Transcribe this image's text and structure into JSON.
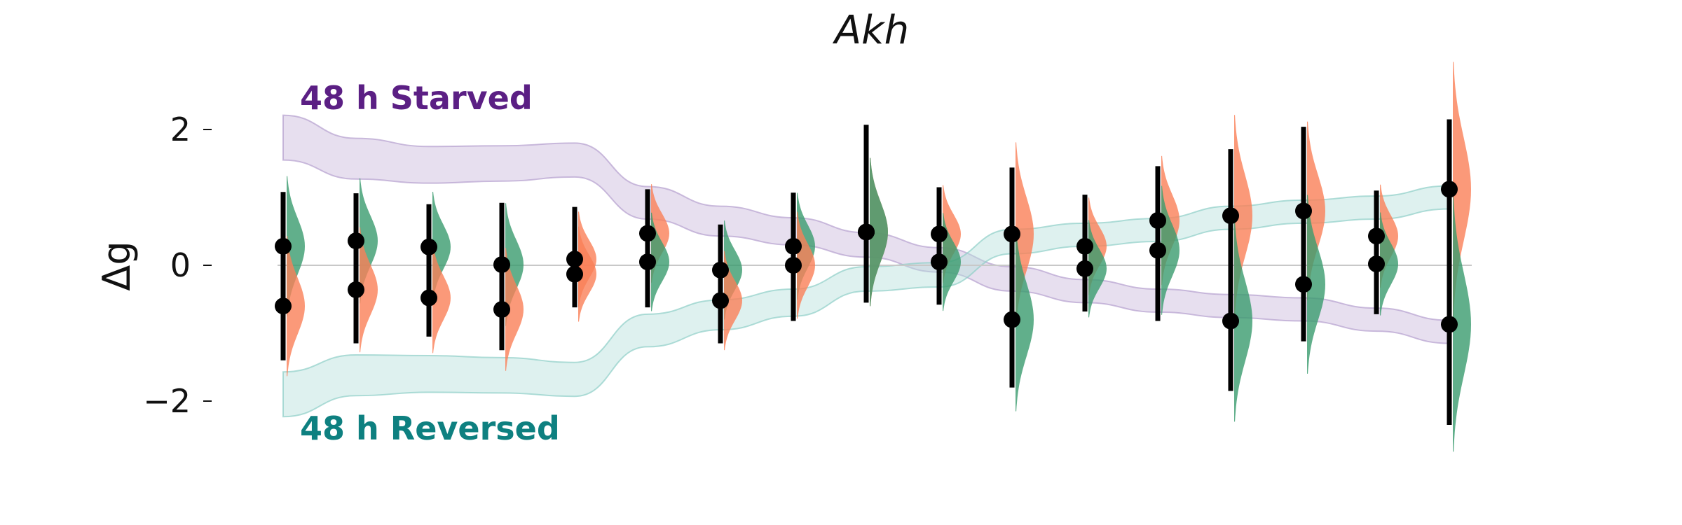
{
  "chart_data": {
    "type": "scatter",
    "title": "Akh",
    "ylabel": "Δg",
    "xlabel": "",
    "ylim": [
      -3.0,
      3.0
    ],
    "yticks": [
      -2,
      0,
      2
    ],
    "ytick_labels": [
      "−2",
      "0",
      "2"
    ],
    "grid": false,
    "zero_line": true,
    "colors": {
      "starved": "#5b1f84",
      "reversed": "#0e8080",
      "starved_band": "#c9b8dc",
      "reversed_band": "#b5e0dc",
      "orange_dist": "#fa7f58",
      "green_dist": "#3a9b6e",
      "marker": "#000000"
    },
    "annotations": {
      "starved": "48 h Starved",
      "reversed": "48 h Reversed"
    },
    "series": [
      {
        "key": "upper",
        "values": [
          0.28,
          0.36,
          0.27,
          0.01,
          0.09,
          0.47,
          -0.07,
          0.28,
          0.49,
          0.46,
          0.46,
          0.28,
          0.66,
          0.73,
          0.8,
          0.43,
          1.12
        ],
        "ci_low": [
          -1.4,
          -1.15,
          -1.05,
          -1.25,
          -0.62,
          -0.62,
          -1.15,
          -0.82,
          -0.55,
          -0.58,
          -1.8,
          -0.68,
          -0.82,
          -1.85,
          -1.12,
          -0.72,
          -2.35
        ],
        "ci_high": [
          1.08,
          1.06,
          0.9,
          0.92,
          0.86,
          1.12,
          0.6,
          1.07,
          2.07,
          1.15,
          1.44,
          1.04,
          1.46,
          1.71,
          2.04,
          1.1,
          2.15
        ]
      },
      {
        "key": "lower",
        "values": [
          -0.6,
          -0.36,
          -0.48,
          -0.65,
          -0.13,
          0.05,
          -0.52,
          0.0,
          0.49,
          0.05,
          -0.8,
          -0.05,
          0.22,
          -0.82,
          -0.28,
          0.02,
          -0.87
        ]
      }
    ],
    "upper_dist": [
      "green",
      "green",
      "green",
      "green",
      "orange",
      "orange",
      "green",
      "green",
      "orange",
      "orange",
      "orange",
      "orange",
      "orange",
      "orange",
      "orange",
      "orange",
      "orange"
    ],
    "lower_dist": [
      "orange",
      "orange",
      "orange",
      "orange",
      "orange",
      "green",
      "orange",
      "orange",
      "green",
      "green",
      "green",
      "green",
      "green",
      "green",
      "green",
      "green",
      "green"
    ],
    "starved_band": {
      "center": [
        1.88,
        1.57,
        1.48,
        1.5,
        1.55,
        0.92,
        0.65,
        0.5,
        0.3,
        0.08,
        -0.2,
        -0.38,
        -0.52,
        -0.6,
        -0.65,
        -0.8,
        -0.98
      ],
      "half_width": [
        0.33,
        0.3,
        0.27,
        0.26,
        0.25,
        0.24,
        0.22,
        0.2,
        0.18,
        0.18,
        0.18,
        0.17,
        0.17,
        0.17,
        0.17,
        0.17,
        0.17
      ]
    },
    "reversed_band": {
      "center": [
        -1.9,
        -1.62,
        -1.6,
        -1.62,
        -1.68,
        -0.96,
        -0.73,
        -0.55,
        -0.2,
        -0.14,
        0.35,
        0.45,
        0.52,
        0.7,
        0.79,
        0.85,
        1.0
      ],
      "half_width": [
        0.33,
        0.3,
        0.27,
        0.26,
        0.25,
        0.24,
        0.22,
        0.2,
        0.18,
        0.18,
        0.18,
        0.17,
        0.17,
        0.17,
        0.17,
        0.17,
        0.17
      ]
    }
  }
}
